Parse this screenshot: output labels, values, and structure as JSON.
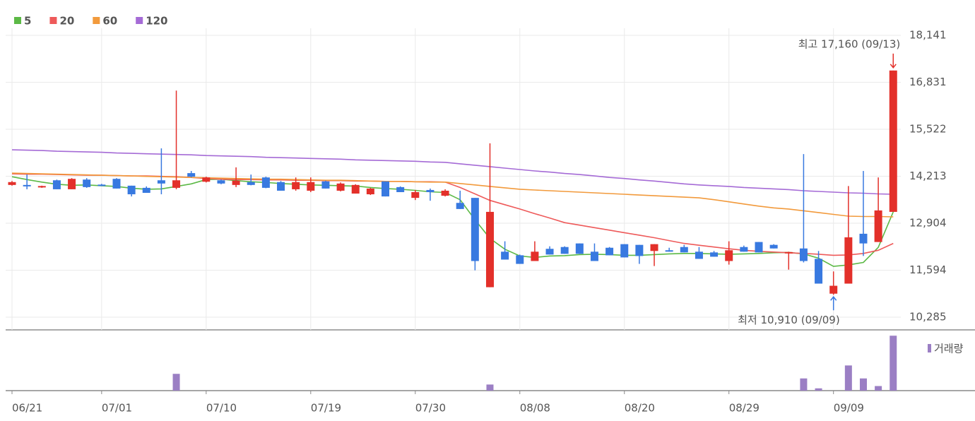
{
  "chart_data": {
    "type": "candlestick",
    "up_color": "#e3302a",
    "down_color": "#3879e0",
    "categories": [
      "06/21",
      null,
      null,
      null,
      null,
      null,
      "07/01",
      null,
      null,
      null,
      null,
      null,
      null,
      "07/10",
      null,
      null,
      null,
      null,
      null,
      null,
      "07/19",
      null,
      null,
      null,
      null,
      null,
      null,
      "07/30",
      null,
      null,
      null,
      null,
      null,
      null,
      "08/08",
      null,
      null,
      null,
      null,
      null,
      null,
      "08/20",
      null,
      null,
      null,
      null,
      null,
      null,
      "08/29",
      null,
      null,
      null,
      null,
      null,
      null,
      "09/09",
      null,
      null,
      null,
      null
    ],
    "open": [
      13970,
      13970,
      13910,
      14100,
      13850,
      14120,
      13980,
      14140,
      13950,
      13890,
      14100,
      13890,
      14300,
      14060,
      14100,
      13970,
      14050,
      14180,
      14050,
      13850,
      13810,
      14070,
      13810,
      13730,
      13710,
      14070,
      13910,
      13610,
      13830,
      13670,
      13470,
      13610,
      11120,
      12110,
      12010,
      11850,
      12190,
      12240,
      12340,
      12110,
      12220,
      12320,
      12300,
      12130,
      12150,
      12240,
      12110,
      12090,
      11850,
      12240,
      12380,
      12300,
      12080,
      12200,
      11910,
      10940,
      11220,
      12610,
      12380,
      13220
    ],
    "high": [
      14080,
      14260,
      13950,
      14120,
      14160,
      14160,
      14000,
      14160,
      13950,
      13930,
      14990,
      16600,
      14360,
      14200,
      14120,
      14460,
      14260,
      14200,
      14080,
      14180,
      14180,
      14090,
      14040,
      13990,
      13890,
      14070,
      13930,
      13830,
      13870,
      13850,
      13810,
      13610,
      15130,
      12400,
      12030,
      12400,
      12260,
      12260,
      12340,
      12340,
      12240,
      12320,
      12300,
      12320,
      12220,
      12300,
      12240,
      12130,
      12400,
      12280,
      12380,
      12320,
      12110,
      14830,
      12130,
      11560,
      13940,
      14360,
      14180,
      17160
    ],
    "low": [
      13950,
      13850,
      13890,
      13850,
      13850,
      13890,
      13940,
      13870,
      13650,
      13750,
      13710,
      13850,
      14180,
      14040,
      13990,
      13910,
      13960,
      13880,
      13810,
      13810,
      13770,
      13870,
      13790,
      13730,
      13690,
      13650,
      13770,
      13550,
      13530,
      13650,
      13300,
      11590,
      11120,
      11890,
      11770,
      11850,
      12030,
      12050,
      12050,
      11850,
      12010,
      11950,
      11770,
      11710,
      12110,
      12090,
      11910,
      11970,
      11750,
      12110,
      12090,
      12200,
      11610,
      11810,
      11220,
      10910,
      11220,
      11990,
      12380,
      13220
    ],
    "close": [
      14050,
      13930,
      13940,
      13850,
      14140,
      13910,
      13950,
      13870,
      13710,
      13750,
      14010,
      14100,
      14200,
      14180,
      14010,
      14090,
      13970,
      13890,
      13810,
      14050,
      14050,
      13870,
      14010,
      13970,
      13870,
      13650,
      13770,
      13770,
      13770,
      13810,
      13300,
      11850,
      13220,
      11890,
      11770,
      12110,
      12030,
      12050,
      12050,
      11850,
      12010,
      11950,
      11990,
      12320,
      12130,
      12090,
      11910,
      11970,
      12150,
      12110,
      12090,
      12200,
      12100,
      11850,
      11220,
      11160,
      12510,
      12340,
      13260,
      17160
    ],
    "series": [
      {
        "name": "5",
        "color": "#5cb946",
        "values": [
          14200,
          14120,
          14050,
          13990,
          13960,
          13970,
          13950,
          13930,
          13880,
          13850,
          13860,
          13930,
          14000,
          14120,
          14130,
          14090,
          14060,
          14040,
          14010,
          13990,
          13970,
          13960,
          13950,
          13940,
          13900,
          13870,
          13850,
          13820,
          13780,
          13760,
          13560,
          13000,
          12480,
          12180,
          11990,
          11950,
          11990,
          12000,
          12030,
          12040,
          12030,
          12010,
          12010,
          12030,
          12050,
          12060,
          12060,
          12050,
          12040,
          12050,
          12060,
          12080,
          12090,
          12050,
          11930,
          11700,
          11740,
          11810,
          12230,
          13220
        ]
      },
      {
        "name": "20",
        "color": "#ee5a5a",
        "values": [
          14280,
          14270,
          14270,
          14260,
          14250,
          14240,
          14240,
          14230,
          14220,
          14220,
          14210,
          14200,
          14180,
          14150,
          14130,
          14120,
          14120,
          14110,
          14110,
          14100,
          14100,
          14090,
          14090,
          14080,
          14080,
          14070,
          14070,
          14060,
          14060,
          14050,
          13900,
          13720,
          13540,
          13420,
          13300,
          13170,
          13050,
          12920,
          12850,
          12780,
          12710,
          12640,
          12570,
          12500,
          12420,
          12340,
          12290,
          12240,
          12190,
          12150,
          12120,
          12100,
          12080,
          12060,
          12040,
          12010,
          12020,
          12060,
          12150,
          12340
        ]
      },
      {
        "name": "60",
        "color": "#f29a3c",
        "values": [
          14300,
          14290,
          14280,
          14270,
          14260,
          14250,
          14240,
          14230,
          14220,
          14210,
          14200,
          14190,
          14180,
          14170,
          14160,
          14150,
          14140,
          14130,
          14130,
          14120,
          14110,
          14100,
          14100,
          14090,
          14080,
          14070,
          14070,
          14060,
          14050,
          14050,
          14010,
          13970,
          13930,
          13890,
          13850,
          13830,
          13810,
          13790,
          13770,
          13750,
          13730,
          13710,
          13690,
          13670,
          13650,
          13630,
          13610,
          13560,
          13500,
          13440,
          13380,
          13330,
          13300,
          13250,
          13200,
          13150,
          13100,
          13090,
          13090,
          13080
        ]
      },
      {
        "name": "120",
        "color": "#a56bd6",
        "values": [
          14950,
          14940,
          14930,
          14910,
          14900,
          14890,
          14880,
          14860,
          14850,
          14840,
          14830,
          14820,
          14810,
          14790,
          14780,
          14770,
          14760,
          14740,
          14730,
          14720,
          14710,
          14700,
          14690,
          14670,
          14660,
          14650,
          14640,
          14630,
          14610,
          14600,
          14560,
          14520,
          14480,
          14440,
          14400,
          14360,
          14330,
          14290,
          14260,
          14220,
          14180,
          14150,
          14110,
          14080,
          14040,
          14000,
          13970,
          13950,
          13930,
          13900,
          13880,
          13860,
          13840,
          13810,
          13790,
          13770,
          13750,
          13740,
          13720,
          13710
        ]
      }
    ],
    "ylim": [
      10285,
      18141
    ],
    "yticks": [
      {
        "value": 10285,
        "label": "10,285"
      },
      {
        "value": 11594,
        "label": "11,594"
      },
      {
        "value": 12904,
        "label": "12,904"
      },
      {
        "value": 14213,
        "label": "14,213"
      },
      {
        "value": 15522,
        "label": "15,522"
      },
      {
        "value": 16831,
        "label": "16,831"
      },
      {
        "value": 18141,
        "label": "18,141"
      }
    ],
    "grid": true,
    "annotations": [
      {
        "text": "최고 17,160 (09/13)",
        "color": "#e3302a"
      },
      {
        "text": "최저 10,910 (09/09)",
        "color": "#3879e0"
      }
    ],
    "volume": {
      "name": "거래량",
      "color": "#9b7fc4",
      "ylim": [
        0,
        75
      ],
      "values": [
        0,
        0,
        0,
        0,
        0,
        0,
        0,
        0,
        0,
        0,
        0,
        22,
        0,
        0,
        0,
        0,
        0,
        0,
        0,
        0,
        0,
        0,
        0,
        0,
        0,
        0,
        0,
        0,
        0,
        0,
        0,
        0,
        8,
        0,
        0,
        0,
        0,
        0,
        0,
        0,
        0,
        0,
        0,
        0,
        0,
        0,
        0,
        0,
        0,
        0,
        0,
        0,
        0,
        16,
        3,
        0,
        33,
        16,
        6,
        72
      ]
    }
  }
}
